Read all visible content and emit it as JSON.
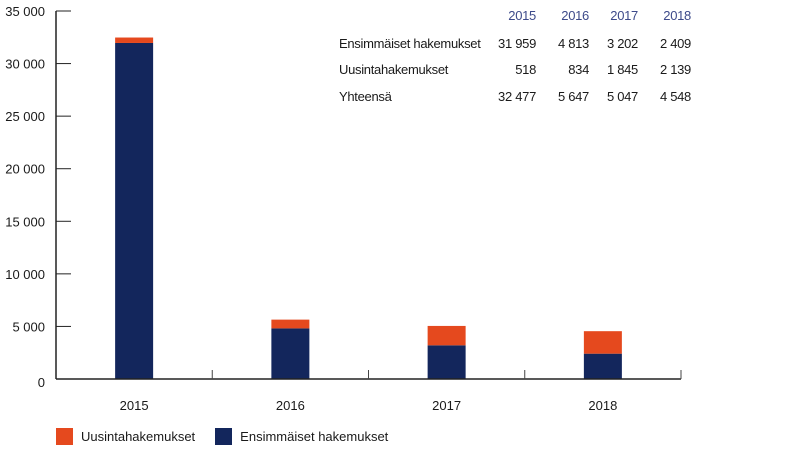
{
  "chart_data": {
    "type": "bar",
    "stacked": true,
    "categories": [
      "2015",
      "2016",
      "2017",
      "2018"
    ],
    "series": [
      {
        "name": "Ensimmäiset hakemukset",
        "values": [
          31959,
          4813,
          3202,
          2409
        ],
        "color": "#13265c"
      },
      {
        "name": "Uusintahakemukset",
        "values": [
          518,
          834,
          1845,
          2139
        ],
        "color": "#e5491e"
      }
    ],
    "ylim": [
      0,
      35000
    ],
    "yticks": [
      "0",
      "5 000",
      "10 000",
      "15 000",
      "20 000",
      "25 000",
      "30 000",
      "35 000"
    ],
    "grid": false,
    "legend": "bottom-left",
    "legend_entries": [
      "Uusintahakemukset",
      "Ensimmäiset hakemukset"
    ],
    "table": {
      "header": [
        "2015",
        "2016",
        "2017",
        "2018"
      ],
      "rows": [
        {
          "label": "Ensimmäiset hakemukset",
          "values": [
            "31 959",
            "4 813",
            "3 202",
            "2 409"
          ]
        },
        {
          "label": "Uusintahakemukset",
          "values": [
            "518",
            "834",
            "1 845",
            "2 139"
          ]
        },
        {
          "label": "Yhteensä",
          "values": [
            "32 477",
            "5 647",
            "5 047",
            "4 548"
          ]
        }
      ]
    }
  }
}
